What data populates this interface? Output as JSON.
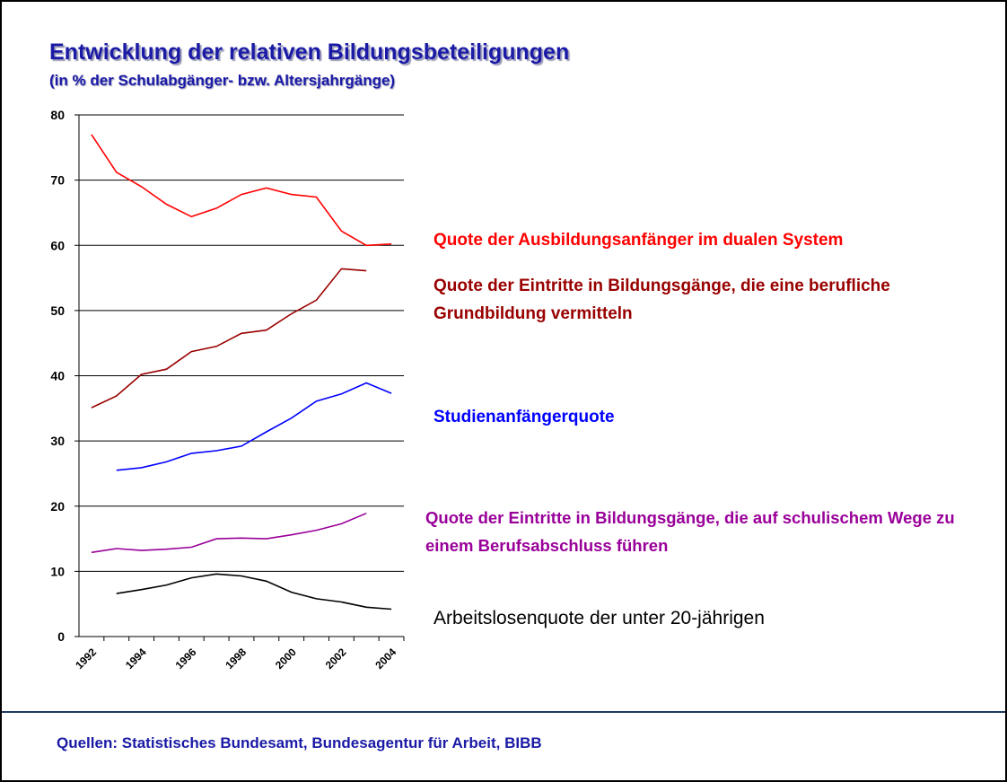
{
  "chart_data": {
    "type": "line",
    "title": "Entwicklung der relativen Bildungsbeteiligungen",
    "subtitle": "(in % der Schulabgänger- bzw. Altersjahrgänge)",
    "source": "Quellen: Statistisches Bundesamt, Bundesagentur für Arbeit, BIBB",
    "categories": [
      "1992",
      null,
      "1994",
      null,
      "1996",
      null,
      "1998",
      null,
      "2000",
      null,
      "2002",
      null,
      "2004"
    ],
    "ylim": [
      0,
      80
    ],
    "yticks": [
      0,
      10,
      20,
      30,
      40,
      50,
      60,
      70,
      80
    ],
    "grid": true,
    "series": [
      {
        "name": "Quote der Ausbildungsanfänger im dualen System",
        "color": "#ff0000",
        "values": [
          77,
          71.2,
          69,
          66.3,
          64.4,
          65.7,
          67.8,
          68.8,
          67.8,
          67.4,
          62.2,
          60,
          60.2
        ]
      },
      {
        "name": "Quote der Eintritte in Bildungsgänge, die eine berufliche Grundbildung vermitteln",
        "color": "#990000",
        "values": [
          35.1,
          36.9,
          40.2,
          41,
          43.7,
          44.5,
          46.5,
          47,
          49.5,
          51.6,
          56.4,
          56.1,
          null
        ]
      },
      {
        "name": "Studienanfängerquote",
        "color": "#0000ff",
        "values": [
          null,
          25.5,
          25.9,
          26.8,
          28.1,
          28.5,
          29.2,
          31.4,
          33.5,
          36.1,
          37.2,
          38.9,
          37.3
        ]
      },
      {
        "name": "Quote der Eintritte in Bildungsgänge, die auf schulischem Wege zu einem Berufsabschluss führen",
        "color": "#990099",
        "values": [
          12.9,
          13.5,
          13.2,
          13.4,
          13.7,
          15,
          15.1,
          15,
          15.6,
          16.3,
          17.3,
          18.9,
          null
        ]
      },
      {
        "name": "Arbeitslosenquote der unter 20-jährigen",
        "color": "#000000",
        "values": [
          null,
          6.6,
          7.2,
          7.9,
          9,
          9.6,
          9.3,
          8.5,
          6.8,
          5.8,
          5.3,
          4.5,
          4.2
        ]
      }
    ]
  }
}
